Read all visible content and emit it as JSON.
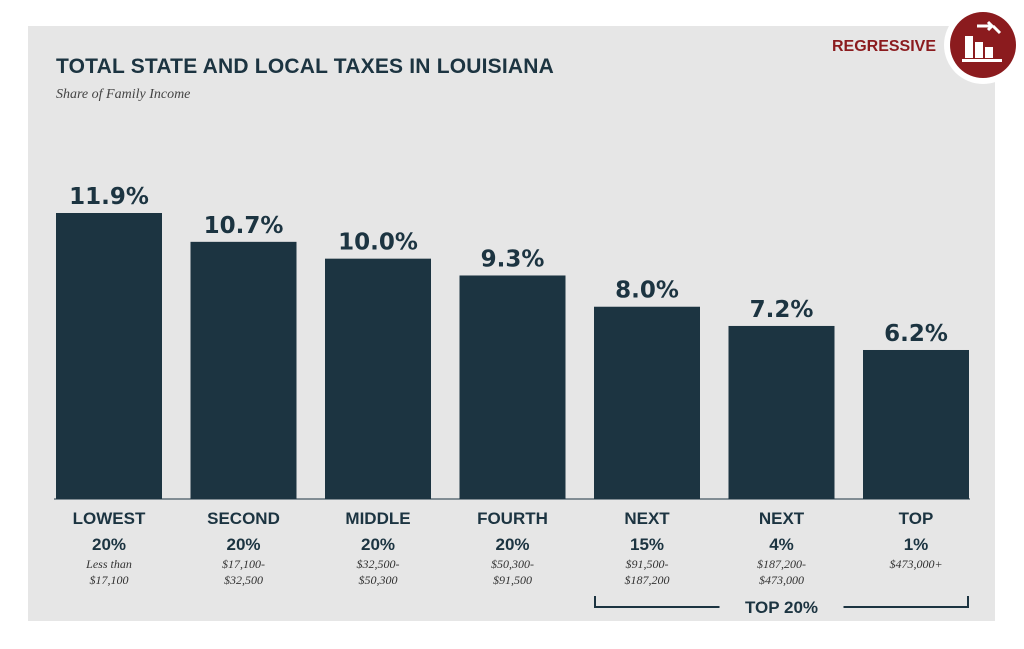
{
  "header": {
    "title": "TOTAL STATE AND LOCAL TAXES IN LOUISIANA",
    "subtitle": "Share of Family Income",
    "badge_label": "REGRESSIVE",
    "badge_icon": "regressive-bar-chart-icon"
  },
  "colors": {
    "bar": "#1c3441",
    "background": "#e6e6e6",
    "accent": "#8b1b1e"
  },
  "chart_data": {
    "type": "bar",
    "title": "TOTAL STATE AND LOCAL TAXES IN LOUISIANA",
    "subtitle": "Share of Family Income",
    "categories": [
      [
        "LOWEST",
        "20%"
      ],
      [
        "SECOND",
        "20%"
      ],
      [
        "MIDDLE",
        "20%"
      ],
      [
        "FOURTH",
        "20%"
      ],
      [
        "NEXT",
        "15%"
      ],
      [
        "NEXT",
        "4%"
      ],
      [
        "TOP",
        "1%"
      ]
    ],
    "income_ranges": [
      [
        "Less than",
        "$17,100"
      ],
      [
        "$17,100-",
        "$32,500"
      ],
      [
        "$32,500-",
        "$50,300"
      ],
      [
        "$50,300-",
        "$91,500"
      ],
      [
        "$91,500-",
        "$187,200"
      ],
      [
        "$187,200-",
        "$473,000"
      ],
      [
        "$473,000+"
      ]
    ],
    "values": [
      11.9,
      10.7,
      10.0,
      9.3,
      8.0,
      7.2,
      6.2
    ],
    "value_labels": [
      "11.9%",
      "10.7%",
      "10.0%",
      "9.3%",
      "8.0%",
      "7.2%",
      "6.2%"
    ],
    "group_bracket": {
      "label": "TOP 20%",
      "from": 4,
      "to": 6
    },
    "ylim": [
      0,
      11.9
    ],
    "grid": false
  }
}
